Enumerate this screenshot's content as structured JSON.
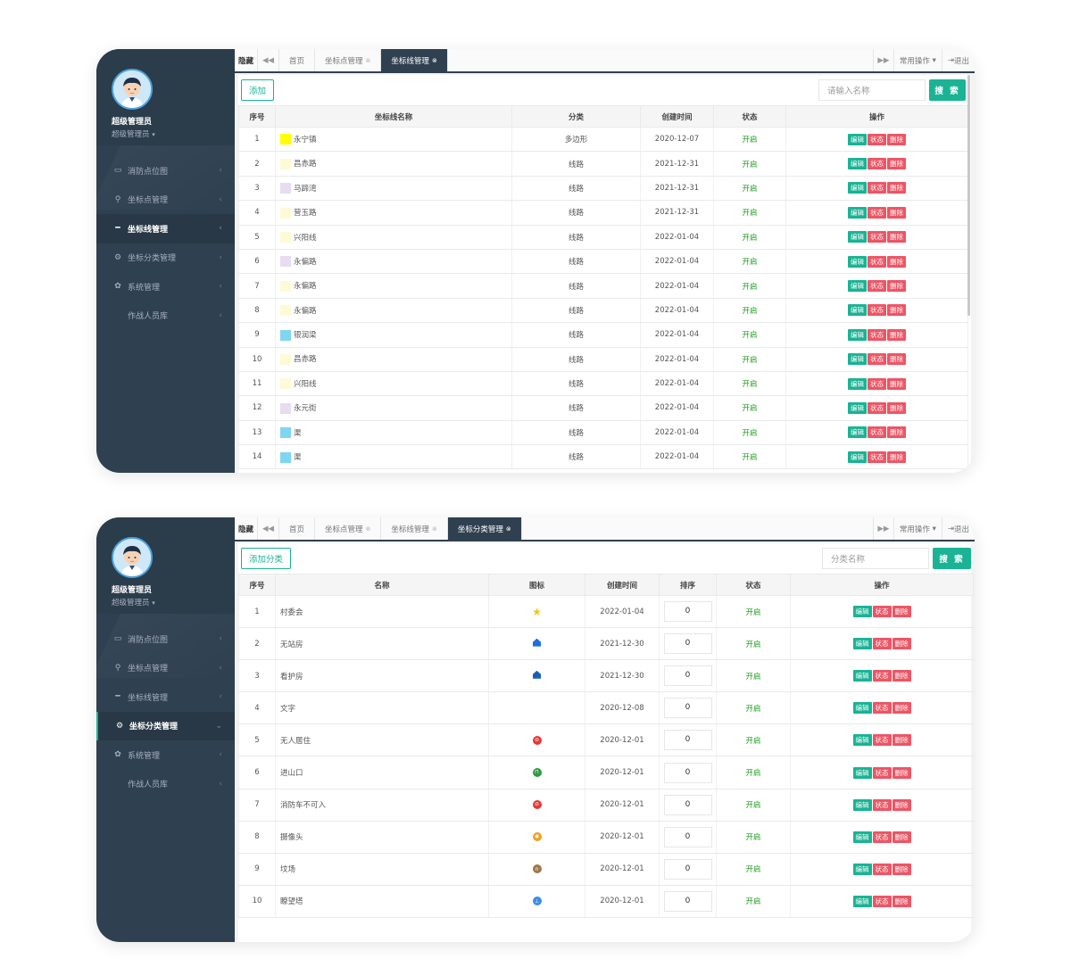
{
  "sidebar": {
    "user_name": "超级管理员",
    "user_role": "超级管理员",
    "menu": [
      "消防点位图",
      "坐标点管理",
      "坐标线管理",
      "坐标分类管理",
      "系统管理",
      "作战人员库"
    ]
  },
  "shot1": {
    "tabbar": {
      "hide": "隐藏",
      "tabs": [
        "首页",
        "坐标点管理",
        "坐标线管理"
      ],
      "ops": "常用操作",
      "logout": "退出"
    },
    "add_label": "添加",
    "search_placeholder": "请输入名称",
    "search_label": "搜 索",
    "headers": [
      "序号",
      "坐标线名称",
      "分类",
      "创建时间",
      "状态",
      "操作"
    ],
    "rows": [
      {
        "no": "1",
        "name": "永宁镇",
        "color": "#ffff00",
        "cat": "多边形",
        "date": "2020-12-07",
        "status": "开启"
      },
      {
        "no": "2",
        "name": "昌赤路",
        "color": "#fdfbd6",
        "cat": "线路",
        "date": "2021-12-31",
        "status": "开启"
      },
      {
        "no": "3",
        "name": "马蹄湾",
        "color": "#e7dcf0",
        "cat": "线路",
        "date": "2021-12-31",
        "status": "开启"
      },
      {
        "no": "4",
        "name": "营玉路",
        "color": "#fdfbd6",
        "cat": "线路",
        "date": "2021-12-31",
        "status": "开启"
      },
      {
        "no": "5",
        "name": "兴阳线",
        "color": "#fdfbd6",
        "cat": "线路",
        "date": "2022-01-04",
        "status": "开启"
      },
      {
        "no": "6",
        "name": "永偏路",
        "color": "#e7dcf0",
        "cat": "线路",
        "date": "2022-01-04",
        "status": "开启"
      },
      {
        "no": "7",
        "name": "永偏路",
        "color": "#fdfbd6",
        "cat": "线路",
        "date": "2022-01-04",
        "status": "开启"
      },
      {
        "no": "8",
        "name": "永偏路",
        "color": "#fdfbd6",
        "cat": "线路",
        "date": "2022-01-04",
        "status": "开启"
      },
      {
        "no": "9",
        "name": "银润梁",
        "color": "#7fd6f2",
        "cat": "线路",
        "date": "2022-01-04",
        "status": "开启"
      },
      {
        "no": "10",
        "name": "昌赤路",
        "color": "#fdfbd6",
        "cat": "线路",
        "date": "2022-01-04",
        "status": "开启"
      },
      {
        "no": "11",
        "name": "兴阳线",
        "color": "#fdfbd6",
        "cat": "线路",
        "date": "2022-01-04",
        "status": "开启"
      },
      {
        "no": "12",
        "name": "永元街",
        "color": "#e7dcf0",
        "cat": "线路",
        "date": "2022-01-04",
        "status": "开启"
      },
      {
        "no": "13",
        "name": "渠",
        "color": "#7fd6f2",
        "cat": "线路",
        "date": "2022-01-04",
        "status": "开启"
      },
      {
        "no": "14",
        "name": "渠",
        "color": "#7fd6f2",
        "cat": "线路",
        "date": "2022-01-04",
        "status": "开启"
      }
    ]
  },
  "shot2": {
    "tabbar": {
      "hide": "隐藏",
      "tabs": [
        "首页",
        "坐标点管理",
        "坐标线管理",
        "坐标分类管理"
      ],
      "ops": "常用操作",
      "logout": "退出"
    },
    "add_label": "添加分类",
    "search_placeholder": "分类名称",
    "search_label": "搜 索",
    "headers": [
      "序号",
      "名称",
      "图标",
      "创建时间",
      "排序",
      "状态",
      "操作"
    ],
    "rows": [
      {
        "no": "1",
        "name": "村委会",
        "icon": "star-icon",
        "icon_color": "#f5c518",
        "date": "2022-01-04",
        "sort": "0",
        "status": "开启"
      },
      {
        "no": "2",
        "name": "无站房",
        "icon": "house-icon",
        "icon_color": "#1e6fd9",
        "date": "2021-12-30",
        "sort": "0",
        "status": "开启"
      },
      {
        "no": "3",
        "name": "看护房",
        "icon": "house-icon",
        "icon_color": "#1a5fb4",
        "date": "2021-12-30",
        "sort": "0",
        "status": "开启"
      },
      {
        "no": "4",
        "name": "文字",
        "icon": "",
        "icon_color": "",
        "date": "2020-12-08",
        "sort": "0",
        "status": "开启"
      },
      {
        "no": "5",
        "name": "无人居住",
        "icon": "no-entry-icon",
        "icon_color": "#e53935",
        "date": "2020-12-01",
        "sort": "0",
        "status": "开启"
      },
      {
        "no": "6",
        "name": "进山口",
        "icon": "gate-icon",
        "icon_color": "#2e9a3f",
        "date": "2020-12-01",
        "sort": "0",
        "status": "开启"
      },
      {
        "no": "7",
        "name": "消防车不可入",
        "icon": "no-truck-icon",
        "icon_color": "#e53935",
        "date": "2020-12-01",
        "sort": "0",
        "status": "开启"
      },
      {
        "no": "8",
        "name": "摄像头",
        "icon": "camera-icon",
        "icon_color": "#f0a020",
        "date": "2020-12-01",
        "sort": "0",
        "status": "开启"
      },
      {
        "no": "9",
        "name": "坟场",
        "icon": "grave-icon",
        "icon_color": "#a0784a",
        "date": "2020-12-01",
        "sort": "0",
        "status": "开启"
      },
      {
        "no": "10",
        "name": "瞭望塔",
        "icon": "tower-icon",
        "icon_color": "#3a8ee6",
        "date": "2020-12-01",
        "sort": "0",
        "status": "开启"
      }
    ]
  },
  "ops": {
    "edit": "编辑",
    "status": "状态",
    "delete": "删除"
  }
}
